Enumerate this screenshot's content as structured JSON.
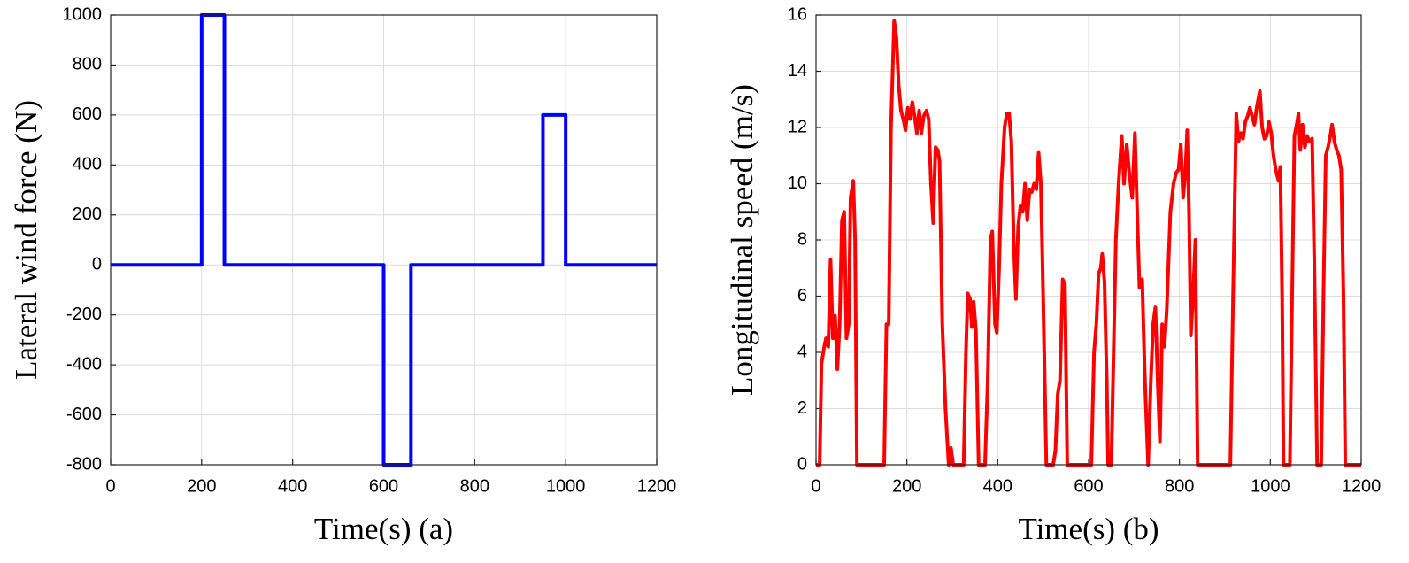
{
  "chart_data": [
    {
      "type": "line",
      "xlabel": "Time(s) (a)",
      "ylabel": "Lateral wind force (N)",
      "x": [
        0,
        200,
        200,
        250,
        250,
        600,
        600,
        660,
        660,
        950,
        950,
        1000,
        1000,
        1200
      ],
      "values": [
        0,
        0,
        1000,
        1000,
        0,
        0,
        -800,
        -800,
        0,
        0,
        600,
        600,
        0,
        0
      ],
      "color": "#0000ff",
      "xlim": [
        0,
        1200
      ],
      "xticks": [
        0,
        200,
        400,
        600,
        800,
        1000,
        1200
      ],
      "ylim": [
        -800,
        1000
      ],
      "yticks": [
        -800,
        -600,
        -400,
        -200,
        0,
        200,
        400,
        600,
        800,
        1000
      ],
      "grid": true
    },
    {
      "type": "line",
      "xlabel": "Time(s) (b)",
      "ylabel": "Longitudinal speed (m/s)",
      "x": [
        0,
        8,
        12,
        18,
        22,
        27,
        32,
        37,
        42,
        47,
        52,
        57,
        62,
        67,
        72,
        76,
        82,
        86,
        90,
        150,
        155,
        160,
        165,
        172,
        177,
        182,
        187,
        192,
        197,
        202,
        207,
        212,
        217,
        222,
        227,
        232,
        237,
        243,
        248,
        253,
        258,
        263,
        268,
        272,
        278,
        285,
        292,
        297,
        302,
        325,
        330,
        334,
        339,
        343,
        347,
        352,
        358,
        372,
        378,
        384,
        388,
        394,
        398,
        403,
        408,
        415,
        420,
        425,
        430,
        435,
        440,
        445,
        450,
        455,
        460,
        465,
        470,
        475,
        480,
        485,
        490,
        495,
        500,
        507,
        522,
        527,
        532,
        537,
        543,
        548,
        553,
        606,
        612,
        617,
        622,
        627,
        630,
        635,
        640,
        643,
        650,
        655,
        660,
        666,
        673,
        678,
        684,
        690,
        696,
        702,
        707,
        712,
        718,
        724,
        731,
        737,
        742,
        747,
        752,
        757,
        762,
        767,
        772,
        780,
        787,
        793,
        798,
        803,
        808,
        813,
        817,
        821,
        825,
        830,
        835,
        840,
        912,
        918,
        925,
        930,
        935,
        940,
        945,
        950,
        955,
        960,
        965,
        970,
        977,
        982,
        987,
        992,
        997,
        1002,
        1007,
        1012,
        1018,
        1022,
        1026,
        1029,
        1043,
        1048,
        1053,
        1058,
        1062,
        1066,
        1071,
        1076,
        1081,
        1086,
        1092,
        1097,
        1103,
        1112,
        1117,
        1122,
        1127,
        1132,
        1136,
        1141,
        1146,
        1151,
        1156,
        1161,
        1165,
        1200
      ],
      "values": [
        0,
        0,
        3.6,
        4.2,
        4.5,
        4.2,
        7.3,
        4.5,
        5.3,
        3.4,
        5,
        8.7,
        9,
        4.5,
        5,
        9.5,
        10.1,
        8,
        0,
        0,
        5,
        5,
        12,
        15.8,
        15.2,
        13.5,
        12.6,
        12.3,
        11.9,
        12.7,
        12.3,
        12.9,
        12.4,
        11.8,
        12.6,
        11.8,
        12.4,
        12.6,
        12.3,
        10,
        8.6,
        11.3,
        11.2,
        10.8,
        5,
        2,
        0,
        0.6,
        0,
        0,
        4,
        6.1,
        5.9,
        4.9,
        5.8,
        4.8,
        0,
        0,
        3,
        8,
        8.3,
        5,
        4.7,
        7,
        10,
        12,
        12.5,
        12.5,
        11.5,
        8,
        5.9,
        8.5,
        9.2,
        9,
        10,
        8.7,
        9.8,
        9.7,
        10,
        9.8,
        11.1,
        10,
        6,
        0,
        0,
        0.5,
        2.5,
        3,
        6.6,
        6.4,
        0,
        0,
        4,
        5,
        6.8,
        7,
        7.5,
        6.5,
        3,
        0,
        0,
        4,
        8,
        10,
        11.7,
        10,
        11.4,
        10.3,
        9.5,
        11.8,
        9,
        6.3,
        6.6,
        3,
        0,
        3,
        5,
        5.6,
        3,
        0.8,
        5,
        4.2,
        5.5,
        9,
        10,
        10.4,
        10.5,
        11.4,
        9.5,
        10.4,
        11.9,
        9,
        4.6,
        6,
        8,
        0,
        0,
        6,
        12.5,
        11.5,
        11.8,
        11.6,
        12.2,
        12.4,
        12.7,
        12.4,
        12.1,
        12.7,
        13.3,
        12,
        11.6,
        11.7,
        12.2,
        11.8,
        11,
        10.5,
        10.1,
        10.6,
        6,
        0,
        0,
        6,
        11.7,
        12.1,
        12.5,
        11.2,
        12.1,
        11.3,
        11.7,
        11.5,
        11.6,
        7,
        0,
        0,
        6,
        11,
        11.3,
        11.7,
        12.1,
        11.5,
        11.2,
        11,
        10.5,
        6,
        0,
        0
      ],
      "color": "#ff0000",
      "xlim": [
        0,
        1200
      ],
      "xticks": [
        0,
        200,
        400,
        600,
        800,
        1000,
        1200
      ],
      "ylim": [
        0,
        16
      ],
      "yticks": [
        0,
        2,
        4,
        6,
        8,
        10,
        12,
        14,
        16
      ],
      "grid": true
    }
  ]
}
